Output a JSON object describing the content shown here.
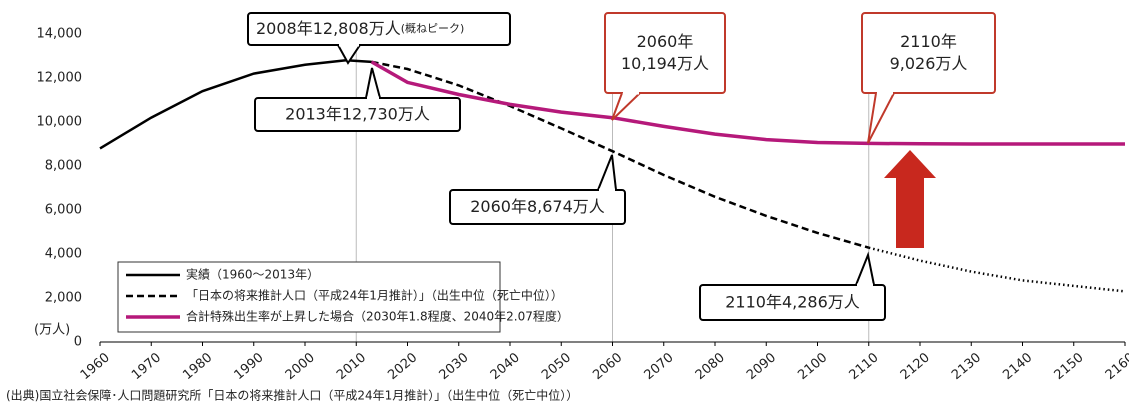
{
  "chart_data": {
    "type": "line",
    "y_unit_label": "(万人)",
    "x": [
      1960,
      1970,
      1980,
      1990,
      2000,
      2008,
      2013,
      2020,
      2030,
      2040,
      2050,
      2060,
      2070,
      2080,
      2090,
      2100,
      2110,
      2120,
      2130,
      2140,
      2150,
      2160
    ],
    "series": [
      {
        "name": "実績（1960～2013年）",
        "color": "#000000",
        "style": "solid",
        "values": [
          8800,
          10200,
          11400,
          12200,
          12600,
          12808,
          12730,
          null,
          null,
          null,
          null,
          null,
          null,
          null,
          null,
          null,
          null,
          null,
          null,
          null,
          null,
          null
        ]
      },
      {
        "name": "「日本の将来推計人口（平成24年1月推計）」（出生中位（死亡中位））",
        "color": "#000000",
        "style": "dashed",
        "values": [
          null,
          null,
          null,
          null,
          null,
          null,
          12730,
          12410,
          11662,
          10728,
          9708,
          8674,
          7590,
          6600,
          5730,
          4959,
          4286,
          null,
          null,
          null,
          null,
          null
        ]
      },
      {
        "color": "#000000",
        "style": "dotted",
        "values": [
          null,
          null,
          null,
          null,
          null,
          null,
          null,
          null,
          null,
          null,
          null,
          null,
          null,
          null,
          null,
          null,
          4286,
          3700,
          3200,
          2800,
          2550,
          2300
        ]
      },
      {
        "name": "合計特殊出生率が上昇した場合（2030年1.8程度、2040年2.07程度）",
        "color": "#b5197a",
        "style": "solid",
        "values": [
          null,
          null,
          null,
          null,
          null,
          null,
          12730,
          11800,
          11250,
          10800,
          10450,
          10194,
          9800,
          9450,
          9200,
          9070,
          9026,
          9010,
          9000,
          9000,
          9000,
          9000
        ]
      }
    ],
    "xlim": [
      1960,
      2160
    ],
    "xticks": [
      1960,
      1970,
      1980,
      1990,
      2000,
      2010,
      2020,
      2030,
      2040,
      2050,
      2060,
      2070,
      2080,
      2090,
      2100,
      2110,
      2120,
      2130,
      2140,
      2150,
      2160
    ],
    "ylim": [
      0,
      14000
    ],
    "yticks": [
      0,
      {
        "value": 2000,
        "label": "2,000"
      },
      {
        "value": 4000,
        "label": "4,000"
      },
      {
        "value": 6000,
        "label": "6,000"
      },
      {
        "value": 8000,
        "label": "8,000"
      },
      {
        "value": 10000,
        "label": "10,000"
      },
      {
        "value": 12000,
        "label": "12,000"
      },
      {
        "value": 14000,
        "label": "14,000"
      }
    ],
    "vertical_grid": [
      2010,
      2060,
      2110
    ],
    "grid_color": "#bbbbbb",
    "annotations": [
      {
        "lines": [
          "2008年12,808万人"
        ],
        "note": "(概ねピーク)",
        "border": "#000000"
      },
      {
        "lines": [
          "2013年12,730万人"
        ],
        "border": "#000000"
      },
      {
        "lines": [
          "2060年",
          "10,194万人"
        ],
        "border": "#c0392b"
      },
      {
        "lines": [
          "2110年",
          "9,026万人"
        ],
        "border": "#c0392b"
      },
      {
        "lines": [
          "2060年8,674万人"
        ],
        "border": "#000000"
      },
      {
        "lines": [
          "2110年4,286万人"
        ],
        "border": "#000000"
      }
    ],
    "source": "(出典)国立社会保障･人口問題研究所「日本の将来推計人口（平成24年1月推計）」（出生中位（死亡中位））"
  }
}
